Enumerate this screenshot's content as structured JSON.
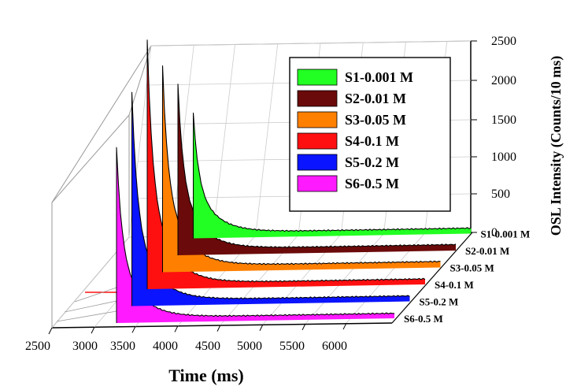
{
  "chart_data": {
    "type": "area",
    "subtype": "3d-waterfall",
    "title": "",
    "xlabel": "Time (ms)",
    "zlabel": "OSL Intensity (Counts/10 ms)",
    "x_ticks": [
      "2500",
      "3000",
      "3500",
      "4000",
      "4500",
      "5000",
      "5500",
      "6000"
    ],
    "z_ticks": [
      "0",
      "500",
      "1000",
      "1500",
      "2000",
      "2500"
    ],
    "xlim": [
      2500,
      6250
    ],
    "zlim": [
      0,
      2500
    ],
    "grid": true,
    "legend_position": "top-right",
    "decay_start_ms": 3560,
    "series": [
      {
        "name": "S1-0.001 M",
        "color": "#22ff22",
        "peak": 1250,
        "tail": 55
      },
      {
        "name": "S2-0.01 M",
        "color": "#6b0a0a",
        "peak": 1700,
        "tail": 60
      },
      {
        "name": "S3-0.05 M",
        "color": "#ff8000",
        "peak": 2050,
        "tail": 60
      },
      {
        "name": "S4-0.1 M",
        "color": "#ff1010",
        "peak": 2480,
        "tail": 55
      },
      {
        "name": "S5-0.2 M",
        "color": "#0a14ff",
        "peak": 2130,
        "tail": 55
      },
      {
        "name": "S6-0.5 M",
        "color": "#ff1aff",
        "peak": 1750,
        "tail": 50
      }
    ]
  }
}
